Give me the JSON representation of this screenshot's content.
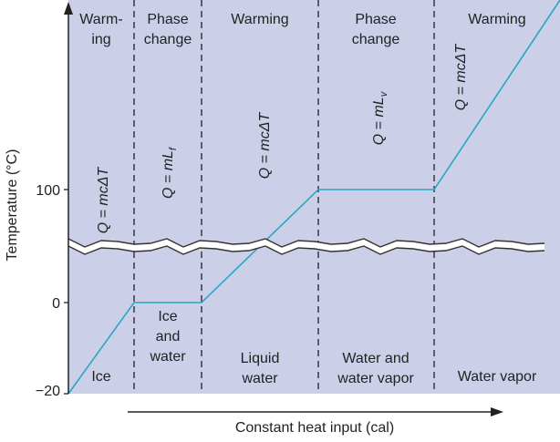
{
  "axes": {
    "y_label": "Temperature (°C)",
    "x_label": "Constant heat input (cal)",
    "y_ticks": [
      "100",
      "0",
      "−20"
    ]
  },
  "phases": [
    {
      "top": [
        "Warm-",
        "ing"
      ],
      "equation": {
        "text": "Q = mcΔT",
        "subscript": null
      },
      "bottom": [
        "Ice"
      ]
    },
    {
      "top": [
        "Phase",
        "change"
      ],
      "equation": {
        "text": "Q = mL",
        "subscript": "f"
      },
      "bottom": [
        "Ice",
        "and",
        "water"
      ]
    },
    {
      "top": [
        "Warming"
      ],
      "equation": {
        "text": "Q = mcΔT",
        "subscript": null
      },
      "bottom": [
        "Liquid",
        "water"
      ]
    },
    {
      "top": [
        "Phase",
        "change"
      ],
      "equation": {
        "text": "Q = mL",
        "subscript": "v"
      },
      "bottom": [
        "Water and",
        "water vapor"
      ]
    },
    {
      "top": [
        "Warming"
      ],
      "equation": {
        "text": "Q = mcΔT",
        "subscript": null
      },
      "bottom": [
        "Water vapor"
      ]
    }
  ]
}
